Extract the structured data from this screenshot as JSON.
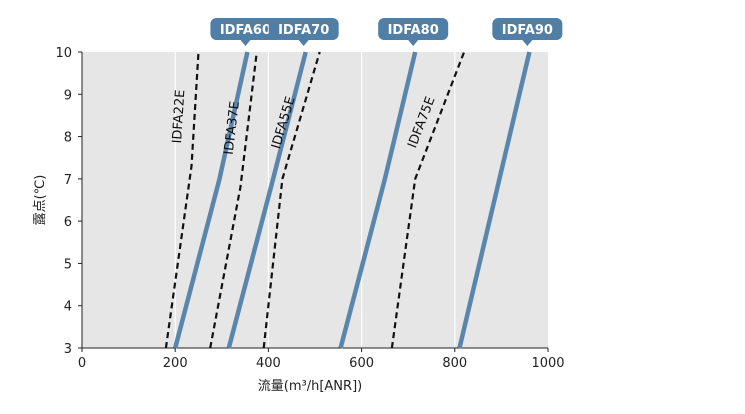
{
  "chart_data": {
    "type": "line",
    "xlabel": "流量(m³/h[ANR])",
    "ylabel": "露点(℃)",
    "xlim": [
      0,
      1000
    ],
    "ylim": [
      3,
      10
    ],
    "xticks": [
      "0",
      "200",
      "400",
      "600",
      "800",
      "1000"
    ],
    "yticks": [
      "3",
      "4",
      "5",
      "6",
      "7",
      "8",
      "9",
      "10"
    ],
    "grid": "vertical",
    "colors": {
      "plot_bg": "#e6e6e6",
      "grid": "#ffffff",
      "solid_series": "#5a86ad",
      "dashed_series": "#111111",
      "tag_bg": "#4f7ea6"
    },
    "series": [
      {
        "name": "IDFA60",
        "style": "solid",
        "label_style": "tag",
        "x": [
          200,
          295,
          355
        ],
        "y": [
          3,
          7,
          10
        ]
      },
      {
        "name": "IDFA70",
        "style": "solid",
        "label_style": "tag",
        "x": [
          315,
          410,
          480
        ],
        "y": [
          3,
          7,
          10
        ]
      },
      {
        "name": "IDFA80",
        "style": "solid",
        "label_style": "tag",
        "x": [
          555,
          650,
          715
        ],
        "y": [
          3,
          7,
          10
        ]
      },
      {
        "name": "IDFA90",
        "style": "solid",
        "label_style": "tag",
        "x": [
          810,
          960
        ],
        "y": [
          3,
          10
        ]
      },
      {
        "name": "IDFA22E",
        "style": "dashed",
        "label_style": "rotated",
        "x": [
          180,
          235,
          250
        ],
        "y": [
          3,
          7.3,
          10
        ]
      },
      {
        "name": "IDFA37E",
        "style": "dashed",
        "label_style": "rotated",
        "x": [
          275,
          340,
          375
        ],
        "y": [
          3,
          6.8,
          10
        ]
      },
      {
        "name": "IDFA55E",
        "style": "dashed",
        "label_style": "rotated",
        "x": [
          390,
          430,
          510
        ],
        "y": [
          3,
          7,
          10
        ]
      },
      {
        "name": "IDFA75E",
        "style": "dashed",
        "label_style": "rotated",
        "x": [
          665,
          715,
          820
        ],
        "y": [
          3,
          7,
          10
        ]
      }
    ]
  }
}
